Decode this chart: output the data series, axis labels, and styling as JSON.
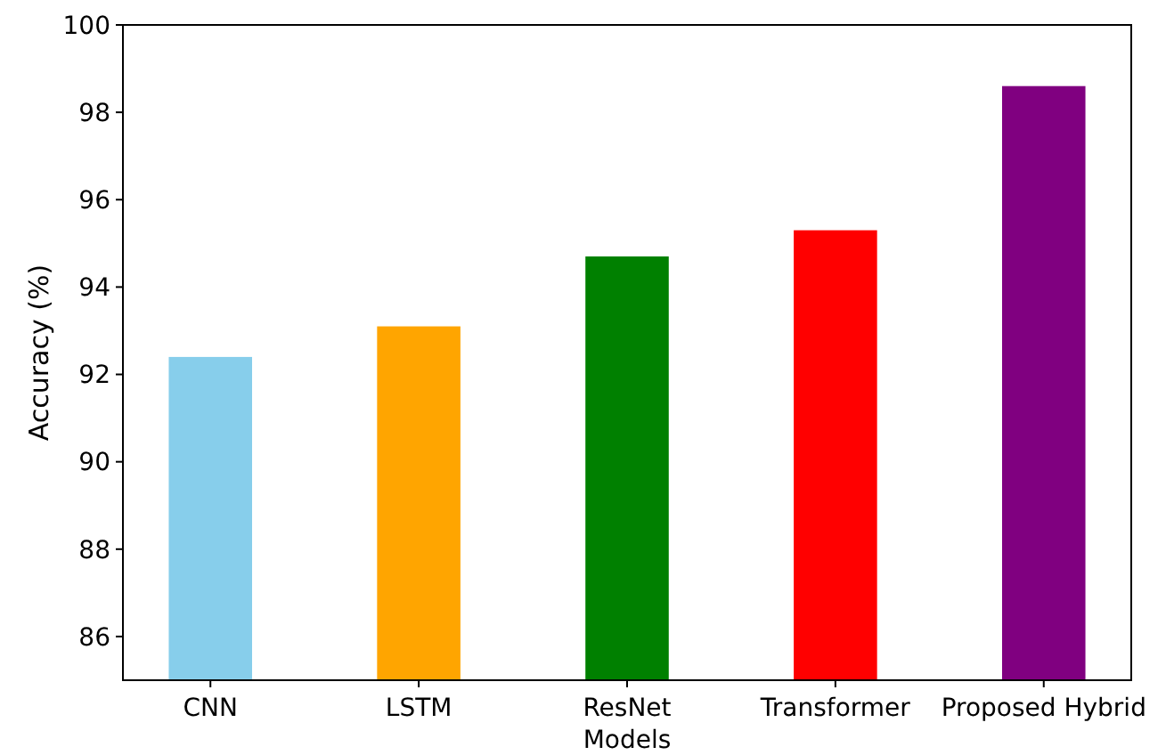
{
  "chart_data": {
    "type": "bar",
    "xlabel": "Models",
    "ylabel": "Accuracy (%)",
    "categories": [
      "CNN",
      "LSTM",
      "ResNet",
      "Transformer",
      "Proposed Hybrid"
    ],
    "values": [
      92.4,
      93.1,
      94.7,
      95.3,
      98.6
    ],
    "colors": [
      "#87ceeb",
      "#ffa500",
      "#008000",
      "#ff0000",
      "#800080"
    ],
    "ylim": [
      85,
      100
    ],
    "yticks": [
      86,
      88,
      90,
      92,
      94,
      96,
      98,
      100
    ],
    "grid": false
  }
}
